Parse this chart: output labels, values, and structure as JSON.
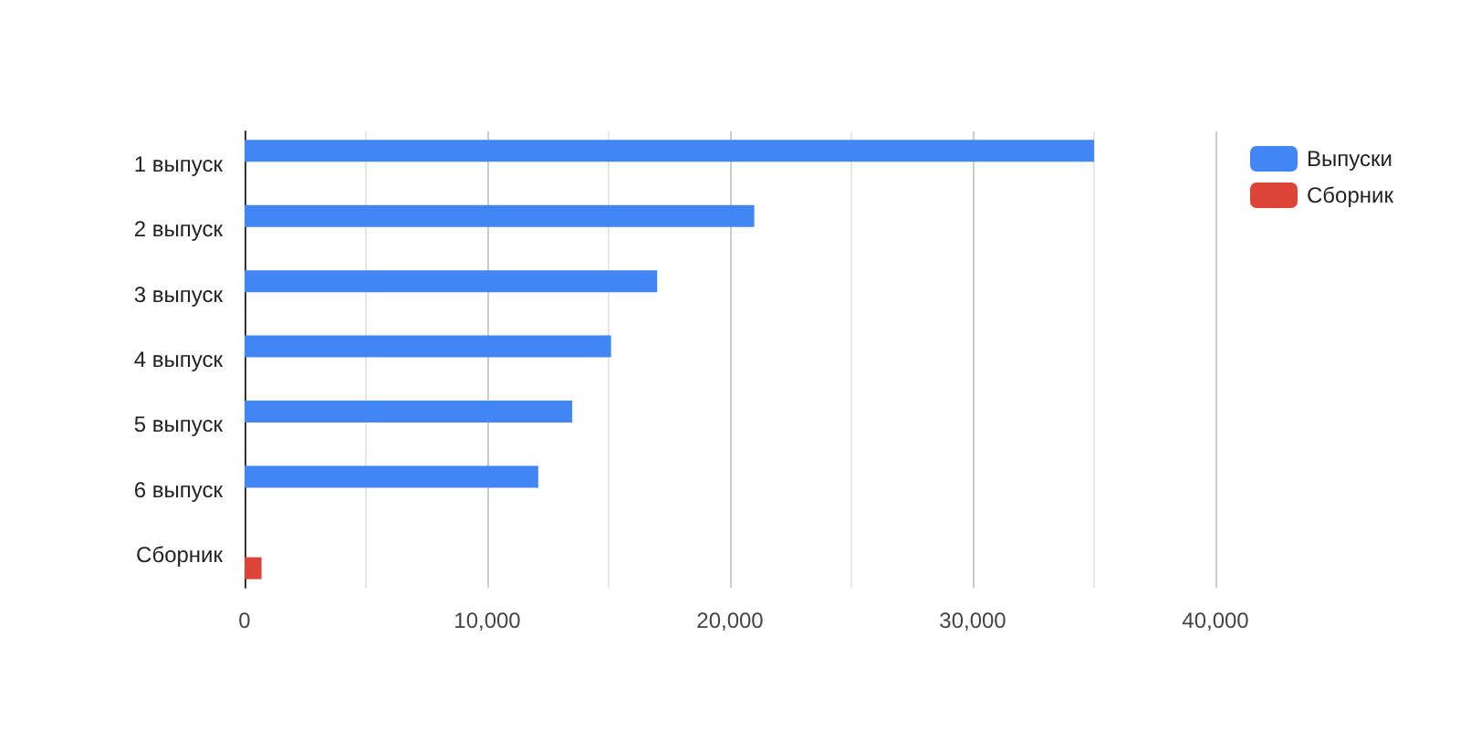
{
  "chart_data": {
    "type": "bar",
    "orientation": "horizontal",
    "categories": [
      "1 выпуск",
      "2 выпуск",
      "3 выпуск",
      "4 выпуск",
      "5 выпуск",
      "6 выпуск",
      "Сборник"
    ],
    "series": [
      {
        "name": "Выпуски",
        "color": "#4285f4",
        "values": [
          35000,
          21000,
          17000,
          15100,
          13500,
          12100,
          null
        ]
      },
      {
        "name": "Сборник",
        "color": "#db4437",
        "values": [
          null,
          null,
          null,
          null,
          null,
          null,
          700
        ]
      }
    ],
    "xlim": [
      0,
      40000
    ],
    "xticks": [
      0,
      {
        "value": 5000,
        "label": null
      },
      {
        "value": 10000,
        "label": "10,000"
      },
      {
        "value": 15000,
        "label": null
      },
      {
        "value": 20000,
        "label": "20,000"
      },
      {
        "value": 25000,
        "label": null
      },
      {
        "value": 30000,
        "label": "30,000"
      },
      {
        "value": 35000,
        "label": null
      },
      {
        "value": 40000,
        "label": "40,000"
      }
    ],
    "grid": "x",
    "legend": "top right"
  }
}
